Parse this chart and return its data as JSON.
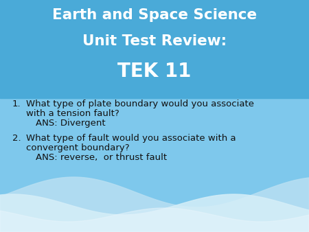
{
  "title_line1": "Earth and Space Science",
  "title_line2": "Unit Test Review:",
  "title_line3": "TEK 11",
  "title_color": "#FFFFFF",
  "bg_color_top": "#4AAAD8",
  "bg_color_body": "#7EC8EC",
  "wave_color1": "#B8DFF2",
  "wave_color2": "#D5EEF8",
  "q1_number": "1.",
  "q1_text_line1": "What type of plate boundary would you associate",
  "q1_text_line2": "with a tension fault?",
  "q1_ans": "ANS: Divergent",
  "q2_number": "2.",
  "q2_text_line1": "What type of fault would you associate with a",
  "q2_text_line2": "convergent boundary?",
  "q2_ans": "ANS: reverse,  or thrust fault",
  "body_text_color": "#111111"
}
